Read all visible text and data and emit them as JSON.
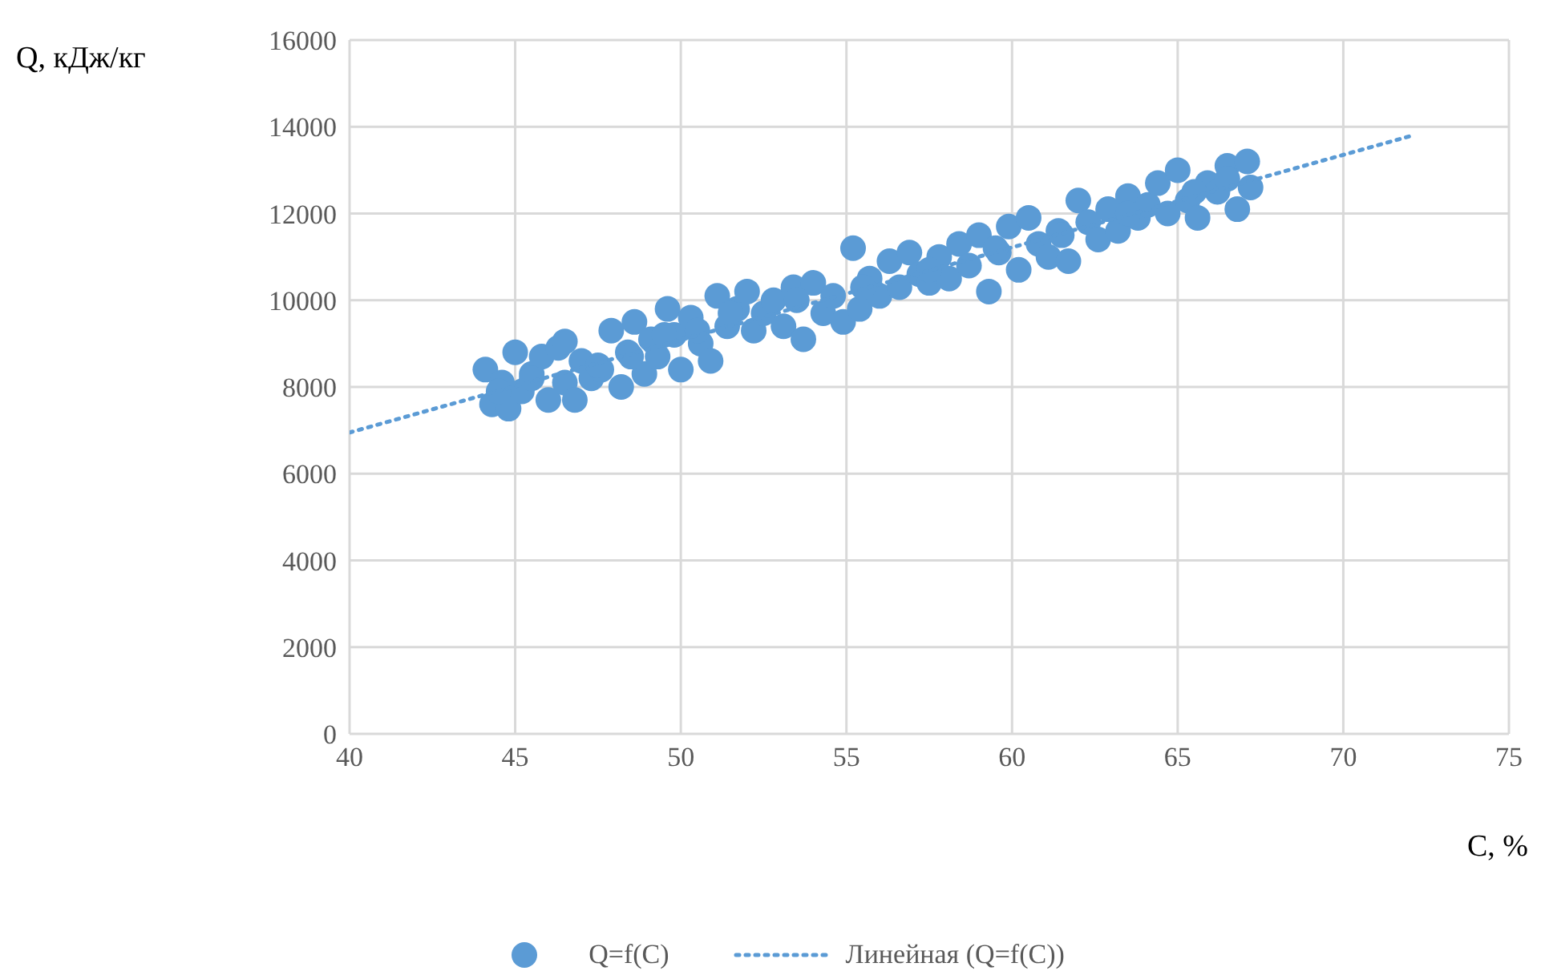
{
  "chart_data": {
    "type": "scatter",
    "xlabel": "C, %",
    "ylabel": "Q, кДж/кг",
    "xlim": [
      40,
      75
    ],
    "xticks": [
      40,
      45,
      50,
      55,
      60,
      65,
      70,
      75
    ],
    "ylim": [
      0,
      16000
    ],
    "yticks": [
      0,
      2000,
      4000,
      6000,
      8000,
      10000,
      12000,
      14000,
      16000
    ],
    "grid": true,
    "legend": "bottom",
    "marker": "circle",
    "series": [
      {
        "name": "Q=f(C)",
        "color": "#5b9bd5",
        "x": [
          44.1,
          44.3,
          44.6,
          44.8,
          45.0,
          45.2,
          45.5,
          45.8,
          46.0,
          46.3,
          46.5,
          46.8,
          47.0,
          47.3,
          47.6,
          47.9,
          48.2,
          48.4,
          48.6,
          48.9,
          49.1,
          49.3,
          49.6,
          49.8,
          50.0,
          50.3,
          50.6,
          50.9,
          51.1,
          51.4,
          51.7,
          52.0,
          52.2,
          52.5,
          52.8,
          53.1,
          53.4,
          53.7,
          54.0,
          54.3,
          54.6,
          54.9,
          55.2,
          55.4,
          55.7,
          56.0,
          56.3,
          56.6,
          56.9,
          57.2,
          57.5,
          57.8,
          58.1,
          58.4,
          58.7,
          59.0,
          59.3,
          59.6,
          59.9,
          60.2,
          60.5,
          60.8,
          61.1,
          61.4,
          61.7,
          62.0,
          62.3,
          62.6,
          62.9,
          63.2,
          63.5,
          63.8,
          64.1,
          64.4,
          64.7,
          65.0,
          65.3,
          65.6,
          65.9,
          66.2,
          66.5,
          66.8,
          67.1,
          67.2,
          44.5,
          45.5,
          46.5,
          47.5,
          48.5,
          49.5,
          50.5,
          51.5,
          53.5,
          55.5,
          57.5,
          59.5,
          61.5,
          63.5,
          65.5,
          66.5
        ],
        "values": [
          8400,
          7600,
          8100,
          7500,
          8800,
          7900,
          8300,
          8700,
          7700,
          8900,
          8100,
          7700,
          8600,
          8200,
          8400,
          9300,
          8000,
          8800,
          9500,
          8300,
          9100,
          8700,
          9800,
          9200,
          8400,
          9600,
          9000,
          8600,
          10100,
          9400,
          9800,
          10200,
          9300,
          9700,
          10000,
          9400,
          10300,
          9100,
          10400,
          9700,
          10100,
          9500,
          11200,
          9800,
          10500,
          10100,
          10900,
          10300,
          11100,
          10600,
          10400,
          11000,
          10500,
          11300,
          10800,
          11500,
          10200,
          11100,
          11700,
          10700,
          11900,
          11300,
          11000,
          11600,
          10900,
          12300,
          11800,
          11400,
          12100,
          11600,
          12400,
          11900,
          12200,
          12700,
          12000,
          13000,
          12300,
          11900,
          12700,
          12500,
          13100,
          12100,
          13200,
          12600,
          7900,
          8200,
          9050,
          8500,
          8700,
          9200,
          9300,
          9700,
          10000,
          10300,
          10700,
          11200,
          11500,
          12000,
          12500,
          12800
        ]
      },
      {
        "name": "Линейная (Q=f(C))",
        "type": "line",
        "line_style": "dotted",
        "marker": "none",
        "color": "#5b9bd5",
        "x": [
          40,
          72
        ],
        "values": [
          6950,
          13780
        ]
      }
    ]
  }
}
